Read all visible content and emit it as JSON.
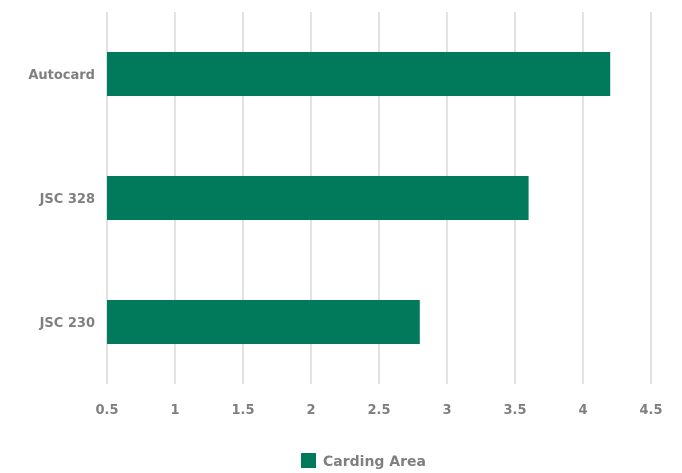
{
  "chart_data": {
    "type": "bar",
    "orientation": "horizontal",
    "categories": [
      "Autocard",
      "JSC 328",
      "JSC 230"
    ],
    "series": [
      {
        "name": "Carding Area",
        "values": [
          4.2,
          3.6,
          2.8
        ],
        "color": "#007a5a"
      }
    ],
    "xlim": [
      0.5,
      4.5
    ],
    "x_ticks": [
      "0.5",
      "1",
      "1.5",
      "2",
      "2.5",
      "3",
      "3.5",
      "4",
      "4.5"
    ],
    "grid": "vertical",
    "legend_position": "bottom",
    "title": "",
    "xlabel": "",
    "ylabel": ""
  }
}
